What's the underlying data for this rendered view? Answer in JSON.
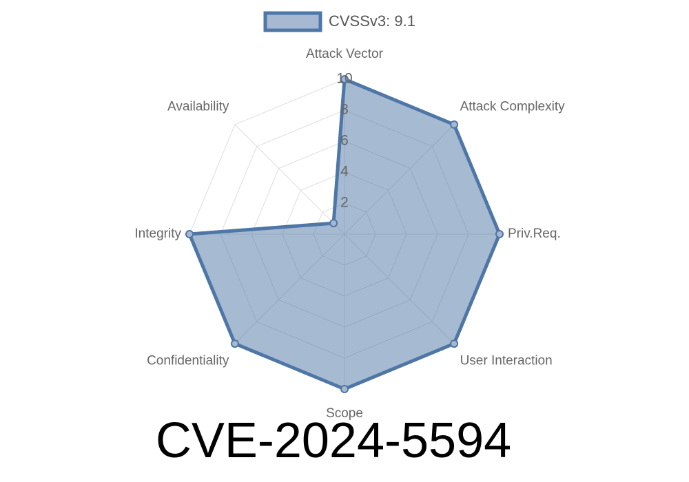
{
  "chart_data": {
    "type": "radar",
    "title": "CVE-2024-5594",
    "categories": [
      "Attack Vector",
      "Attack Complexity",
      "Priv.Req.",
      "User Interaction",
      "Scope",
      "Confidentiality",
      "Integrity",
      "Availability"
    ],
    "series": [
      {
        "name": "CVSSv3: 9.1",
        "color": "#4e76a6",
        "values": [
          10,
          10,
          10,
          10,
          10,
          10,
          10,
          1
        ]
      }
    ],
    "rlim": [
      0,
      10
    ],
    "rticks": [
      2,
      4,
      6,
      8,
      10
    ],
    "grid": true,
    "legend": "top"
  }
}
